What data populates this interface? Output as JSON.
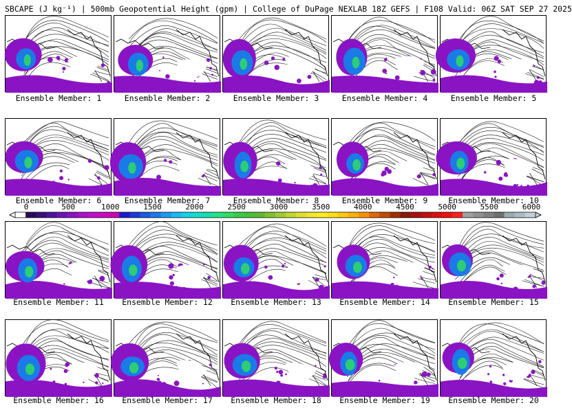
{
  "header": {
    "title": "SBCAPE (J kg⁻¹) | 500mb Geopotential Height (gpm) | College of DuPage NEXLAB 18Z GEFS | F108 Valid: 06Z SAT SEP 27 2025"
  },
  "members": [
    {
      "label": "Ensemble Member: 1"
    },
    {
      "label": "Ensemble Member: 2"
    },
    {
      "label": "Ensemble Member: 3"
    },
    {
      "label": "Ensemble Member: 4"
    },
    {
      "label": "Ensemble Member: 5"
    },
    {
      "label": "Ensemble Member: 6"
    },
    {
      "label": "Ensemble Member: 7"
    },
    {
      "label": "Ensemble Member: 8"
    },
    {
      "label": "Ensemble Member: 9"
    },
    {
      "label": "Ensemble Member: 10"
    },
    {
      "label": "Ensemble Member: 11"
    },
    {
      "label": "Ensemble Member: 12"
    },
    {
      "label": "Ensemble Member: 13"
    },
    {
      "label": "Ensemble Member: 14"
    },
    {
      "label": "Ensemble Member: 15"
    },
    {
      "label": "Ensemble Member: 16"
    },
    {
      "label": "Ensemble Member: 17"
    },
    {
      "label": "Ensemble Member: 18"
    },
    {
      "label": "Ensemble Member: 19"
    },
    {
      "label": "Ensemble Member: 20"
    }
  ],
  "colorbar": {
    "ticks": [
      "0",
      "500",
      "1000",
      "1500",
      "2000",
      "2500",
      "3000",
      "3500",
      "4000",
      "4500",
      "5000",
      "5500",
      "6000"
    ],
    "colors": [
      "#ffffff",
      "#2a0a55",
      "#3a0f7a",
      "#4a1599",
      "#6a16b4",
      "#8a14c4",
      "#a812cc",
      "#c010c8",
      "#c80ac4",
      "#cc00b0",
      "#1a1acc",
      "#1a3ad8",
      "#1a5ae0",
      "#1a7ae8",
      "#1a9af0",
      "#18baf4",
      "#14d2e8",
      "#10dccc",
      "#14e0a8",
      "#24e484",
      "#30dc60",
      "#38cc48",
      "#48c03c",
      "#60b834",
      "#80c030",
      "#a0cc30",
      "#c0d830",
      "#dce030",
      "#f0e828",
      "#ffec20",
      "#ffdc18",
      "#ffc810",
      "#ffb008",
      "#ff9000",
      "#e06800",
      "#c04c00",
      "#a03000",
      "#8a1a00",
      "#a81010",
      "#c01010",
      "#dc1010",
      "#f01010",
      "#ff2020",
      "#a0a0a0",
      "#909090",
      "#808080",
      "#707070",
      "#9aaab0",
      "#aabcc4",
      "#c0d0d8"
    ]
  },
  "map_colors": {
    "cape_low": "#8a14c4",
    "cape_mid": "#1a7ae8",
    "cape_high": "#30dc60",
    "contour": "#111111",
    "coast": "#000000"
  }
}
